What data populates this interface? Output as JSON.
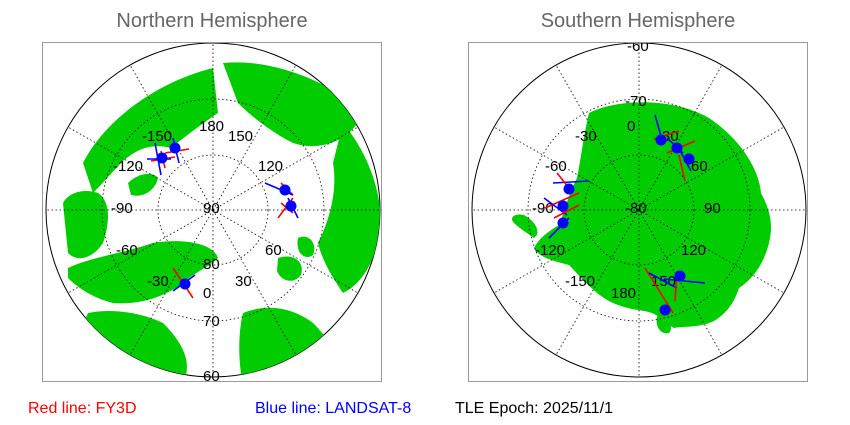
{
  "north": {
    "title": "Northern Hemisphere",
    "lon_labels": [
      "180",
      "-150",
      "150",
      "-120",
      "120",
      "-90",
      "90",
      "-60",
      "60",
      "-30",
      "30",
      "0"
    ],
    "lat_labels": [
      "80",
      "70",
      "60"
    ]
  },
  "south": {
    "title": "Southern Hemisphere",
    "lon_labels": [
      "0",
      "-30",
      "30",
      "-60",
      "60",
      "-90",
      "90",
      "-120",
      "120",
      "-150",
      "150",
      "180"
    ],
    "lat_labels": [
      "-80",
      "-70",
      "-60"
    ]
  },
  "legend": {
    "red_label": "Red line: FY3D",
    "blue_label": "Blue line: LANDSAT-8",
    "epoch_label": "TLE Epoch: 2025/11/1"
  },
  "colors": {
    "land": "#00cc00",
    "fy3d": "#ff0000",
    "landsat8": "#0000ff",
    "marker": "#0000ff"
  }
}
